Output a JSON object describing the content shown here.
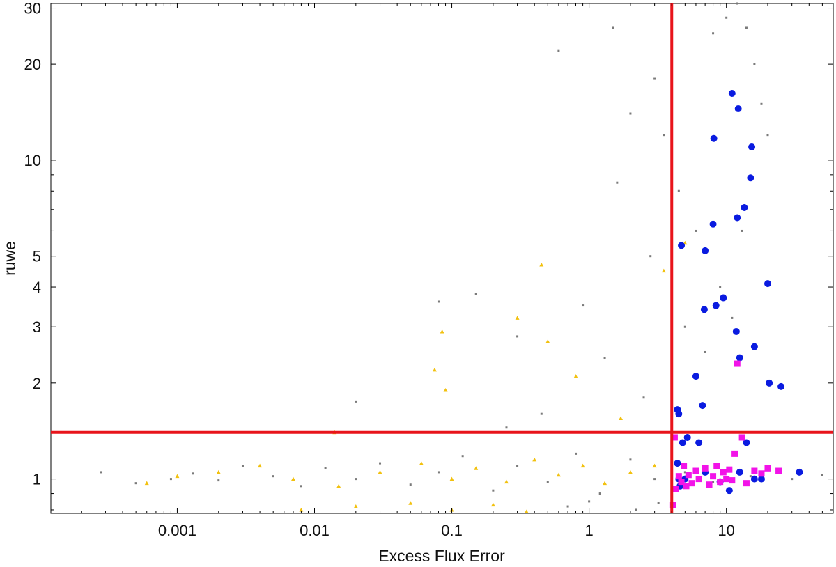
{
  "chart_data": {
    "type": "scatter",
    "title": "",
    "xlabel": "Excess Flux Error",
    "ylabel": "ruwe",
    "x_scale": "log",
    "y_scale": "log",
    "xlim": [
      0.00012,
      60
    ],
    "ylim": [
      0.78,
      31
    ],
    "x_ticks": [
      {
        "value": 0.001,
        "label": "0.001"
      },
      {
        "value": 0.01,
        "label": "0.01"
      },
      {
        "value": 0.1,
        "label": "0.1"
      },
      {
        "value": 1,
        "label": "1"
      },
      {
        "value": 10,
        "label": "10"
      }
    ],
    "y_ticks": [
      {
        "value": 1,
        "label": "1"
      },
      {
        "value": 2,
        "label": "2"
      },
      {
        "value": 3,
        "label": "3"
      },
      {
        "value": 4,
        "label": "4"
      },
      {
        "value": 5,
        "label": "5"
      },
      {
        "value": 10,
        "label": "10"
      },
      {
        "value": 20,
        "label": "20"
      },
      {
        "value": 30,
        "label": "30"
      }
    ],
    "grid": false,
    "legend": "none",
    "threshold_lines": [
      {
        "orientation": "vertical",
        "x": 4.0,
        "color": "#e8141b"
      },
      {
        "orientation": "horizontal",
        "y": 1.4,
        "color": "#e8141b"
      }
    ],
    "series": [
      {
        "marker": "square",
        "color": "#7a7a7a",
        "points": [
          [
            0.00028,
            1.05
          ],
          [
            0.0005,
            0.97
          ],
          [
            0.0009,
            1.0
          ],
          [
            0.0013,
            1.04
          ],
          [
            0.002,
            0.99
          ],
          [
            0.003,
            1.1
          ],
          [
            0.005,
            1.02
          ],
          [
            0.008,
            0.95
          ],
          [
            0.012,
            1.08
          ],
          [
            0.02,
            1.0
          ],
          [
            0.03,
            1.12
          ],
          [
            0.05,
            0.96
          ],
          [
            0.08,
            1.05
          ],
          [
            0.12,
            1.18
          ],
          [
            0.2,
            0.92
          ],
          [
            0.3,
            1.1
          ],
          [
            0.5,
            0.98
          ],
          [
            0.8,
            1.2
          ],
          [
            1.2,
            0.9
          ],
          [
            2.0,
            1.15
          ],
          [
            3.0,
            1.0
          ],
          [
            5.0,
            1.05
          ],
          [
            8.0,
            0.98
          ],
          [
            15,
            1.02
          ],
          [
            30,
            1.0
          ],
          [
            50,
            1.03
          ],
          [
            0.02,
            1.75
          ],
          [
            0.08,
            3.6
          ],
          [
            0.15,
            3.8
          ],
          [
            0.3,
            2.8
          ],
          [
            0.6,
            22
          ],
          [
            1.5,
            26
          ],
          [
            2.0,
            14
          ],
          [
            3.0,
            18
          ],
          [
            3.5,
            12
          ],
          [
            4.5,
            8
          ],
          [
            6,
            6
          ],
          [
            8,
            25
          ],
          [
            10,
            28
          ],
          [
            12,
            31
          ],
          [
            14,
            26
          ],
          [
            16,
            20
          ],
          [
            18,
            15
          ],
          [
            20,
            12
          ],
          [
            5,
            3
          ],
          [
            7,
            2.5
          ],
          [
            9,
            4
          ],
          [
            11,
            3.2
          ],
          [
            13,
            6
          ],
          [
            0.9,
            3.5
          ],
          [
            1.3,
            2.4
          ],
          [
            2.5,
            1.8
          ],
          [
            3.2,
            0.84
          ],
          [
            0.7,
            0.82
          ],
          [
            1.0,
            0.85
          ],
          [
            2.2,
            0.8
          ],
          [
            1.6,
            8.5
          ],
          [
            2.8,
            5
          ],
          [
            0.45,
            1.6
          ],
          [
            0.25,
            1.45
          ]
        ]
      },
      {
        "marker": "triangle",
        "color": "#f2c10f",
        "points": [
          [
            0.0006,
            0.97
          ],
          [
            0.001,
            1.02
          ],
          [
            0.002,
            1.05
          ],
          [
            0.004,
            1.1
          ],
          [
            0.007,
            1.0
          ],
          [
            0.015,
            0.95
          ],
          [
            0.03,
            1.05
          ],
          [
            0.06,
            1.12
          ],
          [
            0.1,
            1.0
          ],
          [
            0.15,
            1.08
          ],
          [
            0.25,
            0.98
          ],
          [
            0.4,
            1.15
          ],
          [
            0.6,
            1.03
          ],
          [
            0.9,
            1.1
          ],
          [
            1.3,
            0.97
          ],
          [
            2.0,
            1.05
          ],
          [
            3.0,
            1.1
          ],
          [
            0.075,
            2.2
          ],
          [
            0.085,
            2.9
          ],
          [
            0.3,
            3.2
          ],
          [
            0.45,
            4.7
          ],
          [
            0.5,
            2.7
          ],
          [
            0.8,
            2.1
          ],
          [
            0.008,
            0.8
          ],
          [
            0.02,
            0.82
          ],
          [
            0.05,
            0.84
          ],
          [
            0.1,
            0.8
          ],
          [
            0.2,
            0.83
          ],
          [
            0.35,
            0.79
          ],
          [
            3.5,
            4.5
          ],
          [
            5,
            5.5
          ],
          [
            0.014,
            1.4
          ],
          [
            0.09,
            1.9
          ],
          [
            1.7,
            1.55
          ]
        ]
      },
      {
        "marker": "circle",
        "color": "#0a1be0",
        "points": [
          [
            4.7,
            5.4
          ],
          [
            4.4,
            1.65
          ],
          [
            4.5,
            1.6
          ],
          [
            4.8,
            1.3
          ],
          [
            5.2,
            1.35
          ],
          [
            6.0,
            2.1
          ],
          [
            6.3,
            1.3
          ],
          [
            6.7,
            1.7
          ],
          [
            6.9,
            3.4
          ],
          [
            7.0,
            5.2
          ],
          [
            8.0,
            6.3
          ],
          [
            8.1,
            11.7
          ],
          [
            8.4,
            3.5
          ],
          [
            9.5,
            3.7
          ],
          [
            11.0,
            16.2
          ],
          [
            11.8,
            2.9
          ],
          [
            12.0,
            6.6
          ],
          [
            12.2,
            14.5
          ],
          [
            12.5,
            2.4
          ],
          [
            13.5,
            7.1
          ],
          [
            14.0,
            1.3
          ],
          [
            15.0,
            8.8
          ],
          [
            15.3,
            11.0
          ],
          [
            16.0,
            2.6
          ],
          [
            18.0,
            1.0
          ],
          [
            20.0,
            4.1
          ],
          [
            20.5,
            2.0
          ],
          [
            25.0,
            1.95
          ],
          [
            34.0,
            1.05
          ],
          [
            4.4,
            1.12
          ],
          [
            4.5,
            1.0
          ],
          [
            4.6,
            0.95
          ],
          [
            5.0,
            1.0
          ],
          [
            7.0,
            1.05
          ],
          [
            9.0,
            0.98
          ],
          [
            10.5,
            0.92
          ],
          [
            12.5,
            1.05
          ],
          [
            16.0,
            1.0
          ]
        ]
      },
      {
        "marker": "square-large",
        "color": "#f213e8",
        "points": [
          [
            4.2,
            1.35
          ],
          [
            4.3,
            0.93
          ],
          [
            4.5,
            1.02
          ],
          [
            4.7,
            0.98
          ],
          [
            4.9,
            1.1
          ],
          [
            5.1,
            0.95
          ],
          [
            5.3,
            1.03
          ],
          [
            5.6,
            0.97
          ],
          [
            6.0,
            1.06
          ],
          [
            6.3,
            1.0
          ],
          [
            7.0,
            1.08
          ],
          [
            7.5,
            0.96
          ],
          [
            8.0,
            1.02
          ],
          [
            8.5,
            1.1
          ],
          [
            9.0,
            0.98
          ],
          [
            9.5,
            1.05
          ],
          [
            10.0,
            1.0
          ],
          [
            10.5,
            1.07
          ],
          [
            11.0,
            0.99
          ],
          [
            11.5,
            1.2
          ],
          [
            12.0,
            2.3
          ],
          [
            13.0,
            1.35
          ],
          [
            14.0,
            0.97
          ],
          [
            16.0,
            1.06
          ],
          [
            18.0,
            1.04
          ],
          [
            20.0,
            1.08
          ],
          [
            24.0,
            1.06
          ],
          [
            4.1,
            0.83
          ]
        ]
      }
    ]
  }
}
